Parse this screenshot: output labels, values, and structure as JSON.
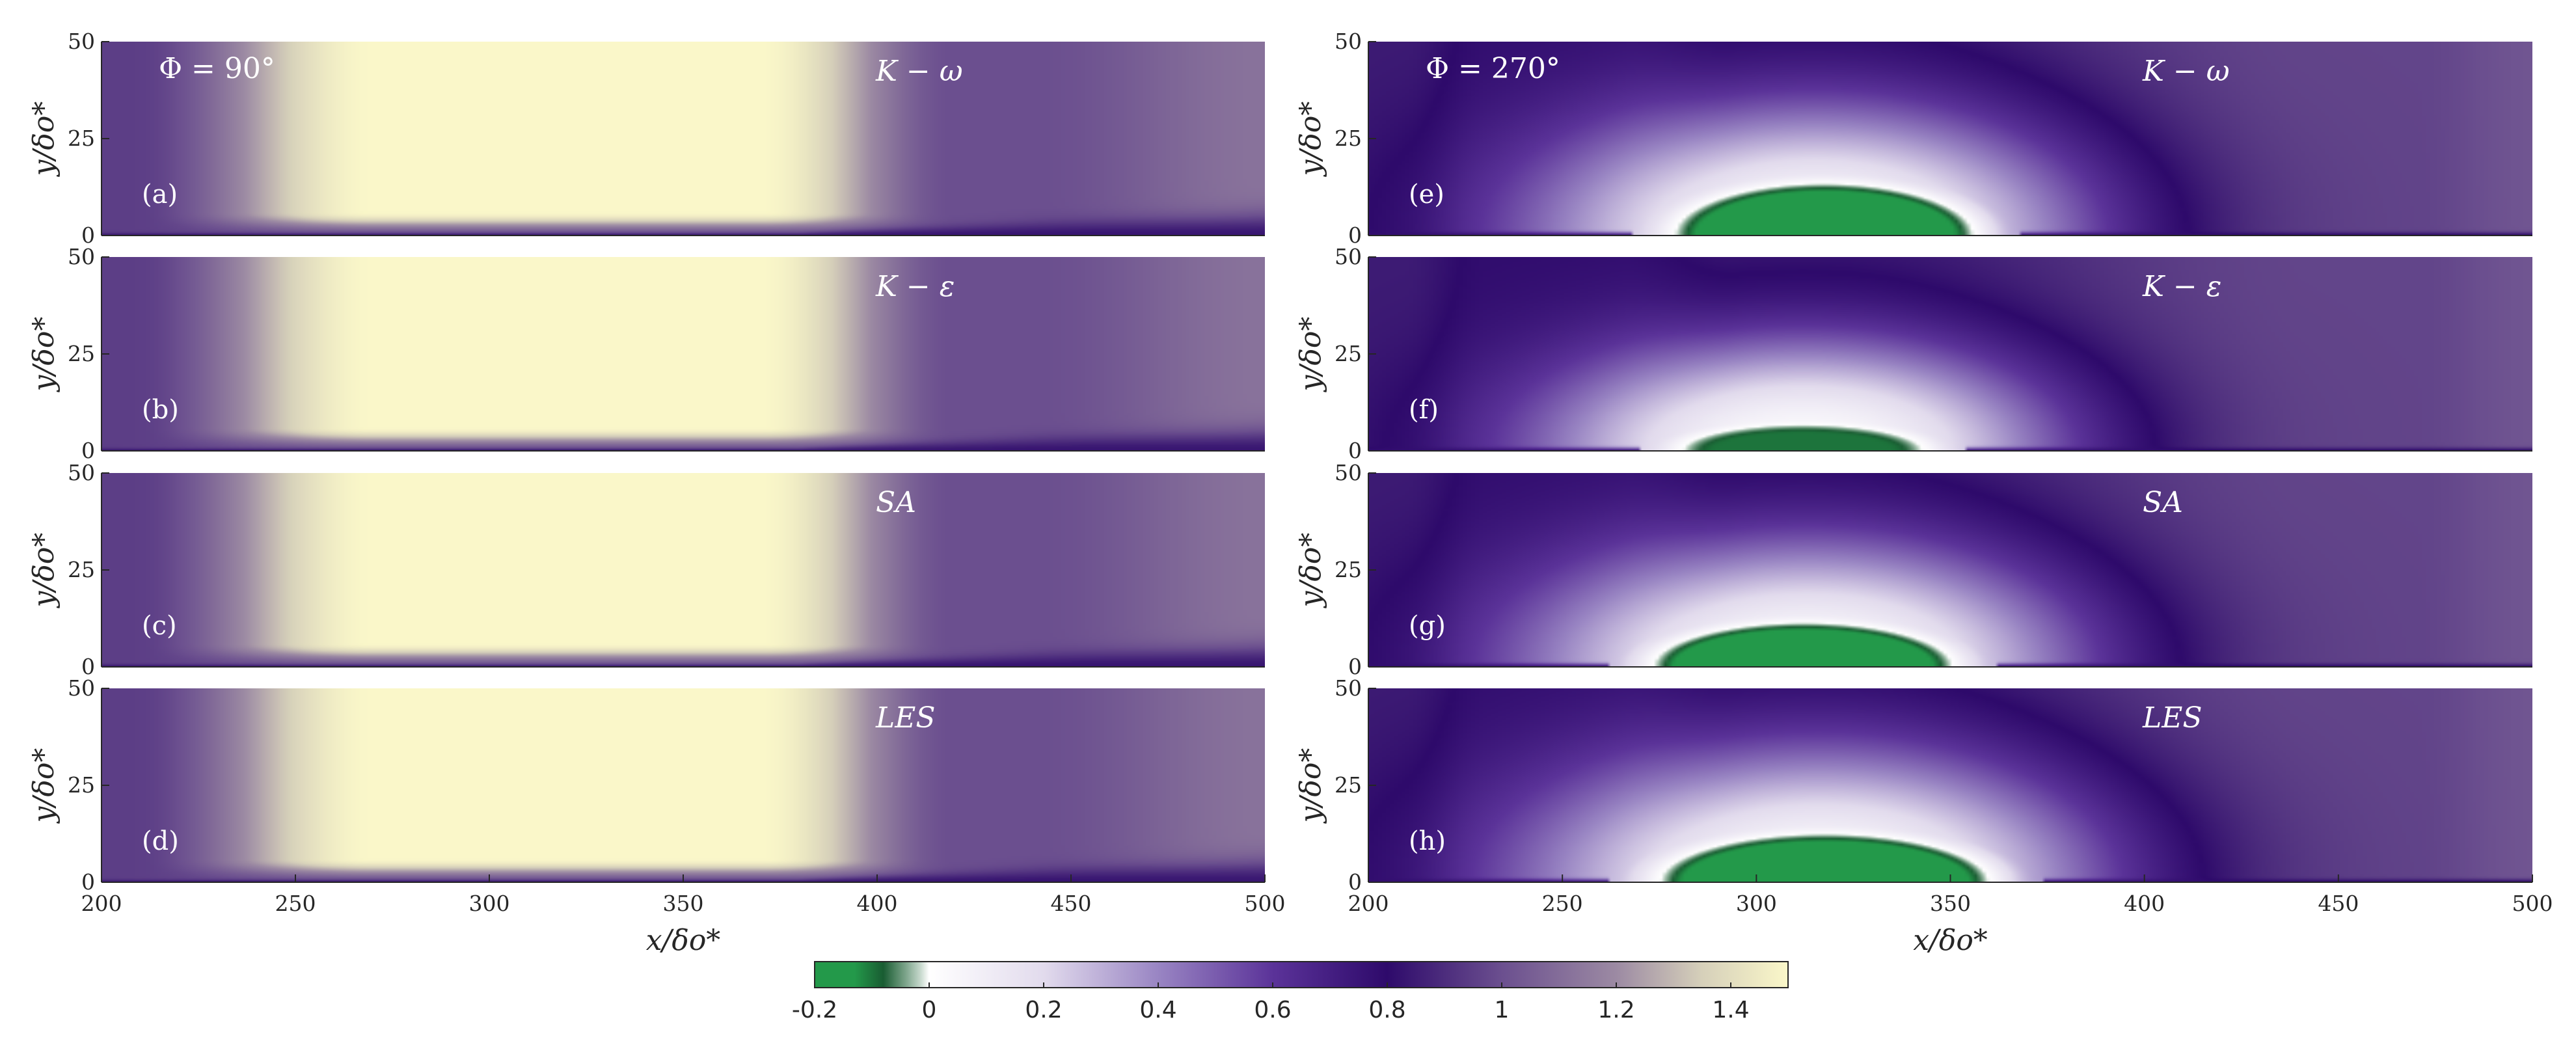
{
  "figure": {
    "colorbar": {
      "ticks": [
        -0.2,
        0,
        0.2,
        0.4,
        0.6,
        0.8,
        1,
        1.2,
        1.4
      ],
      "tick_labels": [
        "-0.2",
        "0",
        "0.2",
        "0.4",
        "0.6",
        "0.8",
        "1",
        "1.2",
        "1.4"
      ],
      "range": [
        -0.2,
        1.5
      ],
      "colormap": [
        {
          "value": -0.2,
          "color": "#23994a"
        },
        {
          "value": -0.13,
          "color": "#23994a"
        },
        {
          "value": -0.08,
          "color": "#195c32"
        },
        {
          "value": -0.04,
          "color": "#7fa68d"
        },
        {
          "value": -0.015,
          "color": "#c7d9cd"
        },
        {
          "value": 0,
          "color": "#ffffff"
        },
        {
          "value": 0.2,
          "color": "#e2dbed"
        },
        {
          "value": 0.4,
          "color": "#9985c3"
        },
        {
          "value": 0.6,
          "color": "#5b3399"
        },
        {
          "value": 0.8,
          "color": "#2e0a6b"
        },
        {
          "value": 1.0,
          "color": "#6b4f8f"
        },
        {
          "value": 1.2,
          "color": "#9c8aa3"
        },
        {
          "value": 1.35,
          "color": "#d6d0ba"
        },
        {
          "value": 1.5,
          "color": "#faf7c9"
        }
      ]
    },
    "columns": [
      {
        "phase_label": "Φ = 90°"
      },
      {
        "phase_label": "Φ = 270°"
      }
    ]
  },
  "chart_data": [
    {
      "type": "heatmap",
      "panel": "(a)",
      "phase": "Φ = 90°",
      "model": "K − ω",
      "xlabel": "",
      "ylabel": "y/δo*",
      "xlim": [
        200,
        500
      ],
      "ylim": [
        0,
        50
      ],
      "x_ticks": [
        200,
        250,
        300,
        350,
        400,
        450,
        500
      ],
      "y_ticks": [
        0,
        25,
        50
      ],
      "show_x_ticks": false,
      "field": {
        "core_value": 1.5,
        "core_x": [
          270,
          370
        ],
        "core_y_min": 3,
        "far_value": 1.0,
        "layer_value": 0.82,
        "thin_layer_x": [
          250,
          390
        ],
        "bubble": null
      }
    },
    {
      "type": "heatmap",
      "panel": "(b)",
      "phase": "Φ = 90°",
      "model": "K − ε",
      "xlabel": "",
      "ylabel": "y/δo*",
      "xlim": [
        200,
        500
      ],
      "ylim": [
        0,
        50
      ],
      "x_ticks": [
        200,
        250,
        300,
        350,
        400,
        450,
        500
      ],
      "y_ticks": [
        0,
        25,
        50
      ],
      "show_x_ticks": false,
      "field": {
        "core_value": 1.5,
        "core_x": [
          270,
          370
        ],
        "core_y_min": 3,
        "far_value": 1.0,
        "layer_value": 0.82,
        "thin_layer_x": [
          250,
          390
        ],
        "bubble": null
      }
    },
    {
      "type": "heatmap",
      "panel": "(c)",
      "phase": "Φ = 90°",
      "model": "SA",
      "xlabel": "",
      "ylabel": "y/δo*",
      "xlim": [
        200,
        500
      ],
      "ylim": [
        0,
        50
      ],
      "x_ticks": [
        200,
        250,
        300,
        350,
        400,
        450,
        500
      ],
      "y_ticks": [
        0,
        25,
        50
      ],
      "show_x_ticks": false,
      "field": {
        "core_value": 1.5,
        "core_x": [
          270,
          370
        ],
        "core_y_min": 3,
        "far_value": 1.0,
        "layer_value": 0.82,
        "thin_layer_x": [
          250,
          390
        ],
        "bubble": null
      }
    },
    {
      "type": "heatmap",
      "panel": "(d)",
      "phase": "Φ = 90°",
      "model": "LES",
      "xlabel": "x/δo*",
      "ylabel": "y/δo*",
      "xlim": [
        200,
        500
      ],
      "ylim": [
        0,
        50
      ],
      "x_ticks": [
        200,
        250,
        300,
        350,
        400,
        450,
        500
      ],
      "y_ticks": [
        0,
        25,
        50
      ],
      "show_x_ticks": true,
      "field": {
        "core_value": 1.5,
        "core_x": [
          270,
          370
        ],
        "core_y_min": 3,
        "far_value": 1.0,
        "layer_value": 0.82,
        "thin_layer_x": [
          250,
          390
        ],
        "bubble": null
      }
    },
    {
      "type": "heatmap",
      "panel": "(e)",
      "phase": "Φ = 270°",
      "model": "K − ω",
      "xlabel": "",
      "ylabel": "y/δo*",
      "xlim": [
        200,
        500
      ],
      "ylim": [
        0,
        50
      ],
      "x_ticks": [
        200,
        250,
        300,
        350,
        400,
        450,
        500
      ],
      "y_ticks": [
        0,
        25,
        50
      ],
      "show_x_ticks": false,
      "field": {
        "far_value": 0.85,
        "deep_x": [
          210,
          265
        ],
        "white_center_x": 315,
        "white_x_halfwidth": 75,
        "white_height": 35,
        "bubble": {
          "x_center": 318,
          "x_halfwidth": 36,
          "height": 12,
          "value": -0.2
        }
      }
    },
    {
      "type": "heatmap",
      "panel": "(f)",
      "phase": "Φ = 270°",
      "model": "K − ε",
      "xlabel": "",
      "ylabel": "y/δo*",
      "xlim": [
        200,
        500
      ],
      "ylim": [
        0,
        50
      ],
      "x_ticks": [
        200,
        250,
        300,
        350,
        400,
        450,
        500
      ],
      "y_ticks": [
        0,
        25,
        50
      ],
      "show_x_ticks": false,
      "field": {
        "far_value": 0.85,
        "deep_x": [
          210,
          265
        ],
        "white_center_x": 312,
        "white_x_halfwidth": 70,
        "white_height": 30,
        "bubble": {
          "x_center": 312,
          "x_halfwidth": 30,
          "height": 6,
          "value": -0.1
        }
      }
    },
    {
      "type": "heatmap",
      "panel": "(g)",
      "phase": "Φ = 270°",
      "model": "SA",
      "xlabel": "",
      "ylabel": "y/δo*",
      "xlim": [
        200,
        500
      ],
      "ylim": [
        0,
        50
      ],
      "x_ticks": [
        200,
        250,
        300,
        350,
        400,
        450,
        500
      ],
      "y_ticks": [
        0,
        25,
        50
      ],
      "show_x_ticks": false,
      "field": {
        "far_value": 0.85,
        "deep_x": [
          210,
          265
        ],
        "white_center_x": 313,
        "white_x_halfwidth": 75,
        "white_height": 34,
        "bubble": {
          "x_center": 312,
          "x_halfwidth": 36,
          "height": 10,
          "value": -0.2
        }
      }
    },
    {
      "type": "heatmap",
      "panel": "(h)",
      "phase": "Φ = 270°",
      "model": "LES",
      "xlabel": "x/δo*",
      "ylabel": "y/δo*",
      "xlim": [
        200,
        500
      ],
      "ylim": [
        0,
        50
      ],
      "x_ticks": [
        200,
        250,
        300,
        350,
        400,
        450,
        500
      ],
      "y_ticks": [
        0,
        25,
        50
      ],
      "show_x_ticks": true,
      "field": {
        "far_value": 0.85,
        "deep_x": [
          210,
          265
        ],
        "white_center_x": 316,
        "white_x_halfwidth": 78,
        "white_height": 36,
        "bubble": {
          "x_center": 318,
          "x_halfwidth": 40,
          "height": 11,
          "value": -0.2
        }
      }
    }
  ]
}
